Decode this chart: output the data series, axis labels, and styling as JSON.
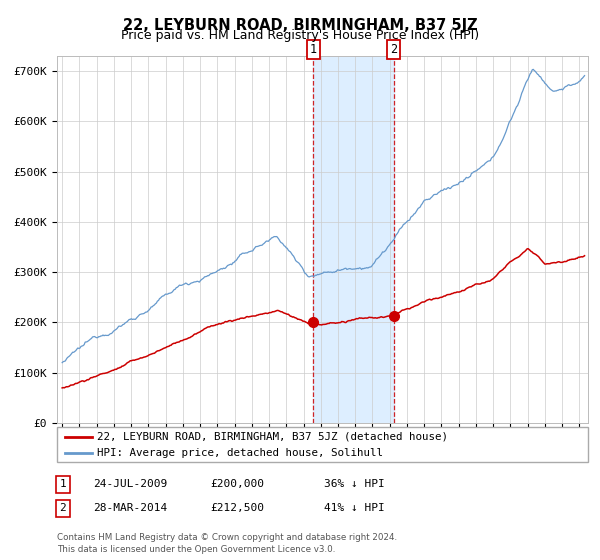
{
  "title": "22, LEYBURN ROAD, BIRMINGHAM, B37 5JZ",
  "subtitle": "Price paid vs. HM Land Registry's House Price Index (HPI)",
  "ylabel_ticks": [
    "£0",
    "£100K",
    "£200K",
    "£300K",
    "£400K",
    "£500K",
    "£600K",
    "£700K"
  ],
  "ylim": [
    0,
    730000
  ],
  "xlim_start": 1994.7,
  "xlim_end": 2025.5,
  "transaction1_date": 2009.55,
  "transaction1_price": 200000,
  "transaction1_label": "1",
  "transaction2_date": 2014.23,
  "transaction2_price": 212500,
  "transaction2_label": "2",
  "legend_red": "22, LEYBURN ROAD, BIRMINGHAM, B37 5JZ (detached house)",
  "legend_blue": "HPI: Average price, detached house, Solihull",
  "table_row1_num": "1",
  "table_row1_date": "24-JUL-2009",
  "table_row1_price": "£200,000",
  "table_row1_hpi": "36% ↓ HPI",
  "table_row2_num": "2",
  "table_row2_date": "28-MAR-2014",
  "table_row2_price": "£212,500",
  "table_row2_hpi": "41% ↓ HPI",
  "footnote1": "Contains HM Land Registry data © Crown copyright and database right 2024.",
  "footnote2": "This data is licensed under the Open Government Licence v3.0.",
  "bg_color": "#ffffff",
  "grid_color": "#cccccc",
  "blue_color": "#6699cc",
  "red_color": "#cc0000",
  "shade_color": "#ddeeff"
}
